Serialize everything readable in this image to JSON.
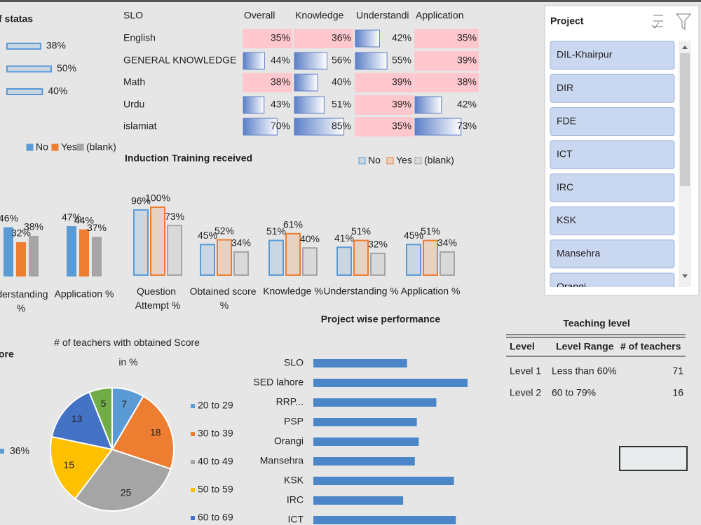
{
  "status_chart": {
    "type": "hbar",
    "title": "f statas",
    "values": [
      38,
      50,
      40
    ],
    "value_labels": [
      "38%",
      "50%",
      "40%"
    ],
    "color": "#5b9bd5"
  },
  "slo_table": {
    "headers": [
      "SLO",
      "Overall",
      "Knowledge",
      "Understandi",
      "Application"
    ],
    "rows": [
      [
        "English",
        "35%",
        "36%",
        "42%",
        "35%"
      ],
      [
        "GENERAL KNOWLEDGE",
        "44%",
        "56%",
        "55%",
        "39%"
      ],
      [
        "Math",
        "38%",
        "40%",
        "39%",
        "38%"
      ],
      [
        "Urdu",
        "43%",
        "51%",
        "39%",
        "42%"
      ],
      [
        "islamiat",
        "70%",
        "85%",
        "35%",
        "73%"
      ]
    ],
    "highlight_below": 40,
    "highlight_color": "#ffc7ce",
    "bar_color": "#5b7fc7"
  },
  "left_chart": {
    "type": "bar",
    "categories": [
      "nderstanding %",
      "Application %"
    ],
    "series": [
      {
        "name": "No",
        "color": "#5b9bd5",
        "values": [
          46,
          47
        ],
        "value_labels": [
          "46%",
          "47%"
        ]
      },
      {
        "name": "Yes",
        "color": "#ed7d31",
        "values": [
          32,
          44
        ],
        "value_labels": [
          "32%",
          "44%"
        ]
      },
      {
        "name": "(blank)",
        "color": "#a5a5a5",
        "values": [
          38,
          37
        ],
        "value_labels": [
          "38%",
          "37%"
        ]
      }
    ]
  },
  "induction_chart": {
    "type": "bar",
    "style": "outlined",
    "title": "Induction Training received",
    "categories": [
      "Question Attempt %",
      "Obtained score %",
      "Knowledge %",
      "Understanding %",
      "Application %"
    ],
    "series": [
      {
        "name": "No",
        "color": "#5b9bd5",
        "values": [
          96,
          45,
          51,
          41,
          45
        ],
        "value_labels": [
          "96%",
          "45%",
          "51%",
          "41%",
          "45%"
        ]
      },
      {
        "name": "Yes",
        "color": "#ed7d31",
        "values": [
          100,
          52,
          61,
          51,
          51
        ],
        "value_labels": [
          "100%",
          "52%",
          "61%",
          "51%",
          "51%"
        ]
      },
      {
        "name": "(blank)",
        "color": "#a5a5a5",
        "values": [
          73,
          34,
          40,
          32,
          34
        ],
        "value_labels": [
          "73%",
          "34%",
          "40%",
          "32%",
          "34%"
        ]
      }
    ]
  },
  "project_slicer": {
    "title": "Project",
    "items": [
      "DIL-Khairpur",
      "DIR",
      "FDE",
      "ICT",
      "IRC",
      "KSK",
      "Mansehra",
      "Orangi"
    ]
  },
  "project_chart": {
    "type": "hbar",
    "title": "Project wise performance",
    "categories": [
      "SLO",
      "SED lahore",
      "RRP...",
      "PSP",
      "Orangi",
      "Mansehra",
      "KSK",
      "IRC",
      "ICT"
    ],
    "values": [
      48,
      79,
      63,
      53,
      54,
      52,
      72,
      46,
      73
    ],
    "color": "#4a86c8"
  },
  "teaching_level": {
    "title": "Teaching level",
    "headers": [
      "Level",
      "Level Range",
      "# of teachers"
    ],
    "rows": [
      [
        "Level 1",
        "Less than 60%",
        "71"
      ],
      [
        "Level 2",
        "60 to 79%",
        "16"
      ]
    ]
  },
  "pie_chart": {
    "type": "pie",
    "title": "# of teachers with obtained Score in %",
    "categories": [
      "20 to 29",
      "30 to 39",
      "40 to 49",
      "50 to 59",
      "60 to 69",
      null
    ],
    "values": [
      7,
      18,
      25,
      15,
      13,
      5
    ],
    "colors": [
      "#5b9bd5",
      "#ed7d31",
      "#a5a5a5",
      "#ffc000",
      "#4472c4",
      "#70ad47"
    ]
  },
  "score_partial": {
    "title": "ore",
    "legend": [
      "36%"
    ],
    "color": "#5b9bd5"
  }
}
